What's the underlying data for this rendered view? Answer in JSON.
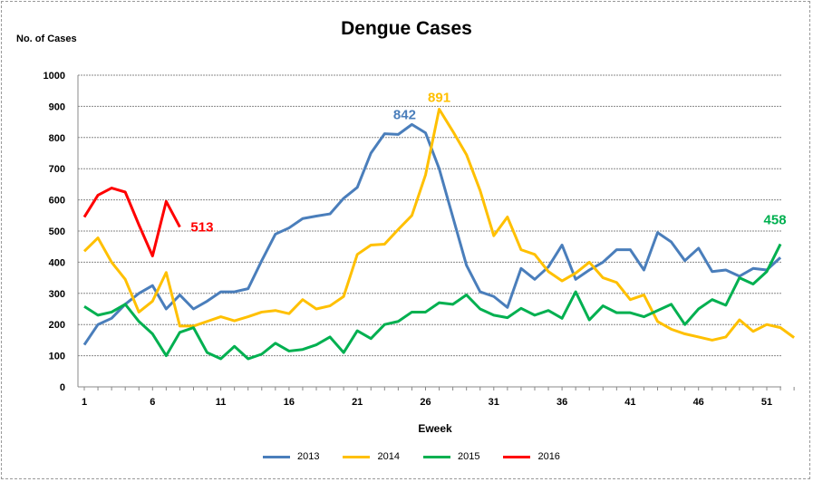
{
  "chart_data": {
    "type": "line",
    "title": "Dengue Cases",
    "ylabel": "No. of Cases",
    "xlabel": "Eweek",
    "ylim": [
      0,
      1000
    ],
    "yticks": [
      0,
      100,
      200,
      300,
      400,
      500,
      600,
      700,
      800,
      900,
      1000
    ],
    "xlim": [
      1,
      53
    ],
    "xticks": [
      1,
      6,
      11,
      16,
      21,
      26,
      31,
      36,
      41,
      46,
      51
    ],
    "grid": true,
    "legend": "bottom",
    "series": [
      {
        "name": "2013",
        "color": "#4A7EBB",
        "label": "842",
        "label_week": 25,
        "values": [
          135,
          200,
          220,
          265,
          300,
          325,
          250,
          295,
          250,
          275,
          305,
          305,
          315,
          405,
          490,
          510,
          540,
          548,
          555,
          605,
          640,
          750,
          812,
          810,
          842,
          815,
          700,
          545,
          390,
          305,
          290,
          255,
          380,
          345,
          385,
          455,
          345,
          375,
          400,
          440,
          440,
          375,
          495,
          465,
          405,
          445,
          370,
          375,
          355,
          380,
          375,
          415
        ]
      },
      {
        "name": "2014",
        "color": "#FFC000",
        "label": "891",
        "label_week": 27,
        "values": [
          435,
          478,
          400,
          345,
          240,
          275,
          367,
          195,
          195,
          210,
          225,
          212,
          225,
          240,
          245,
          235,
          280,
          250,
          260,
          290,
          425,
          455,
          458,
          505,
          550,
          680,
          891,
          820,
          745,
          630,
          485,
          545,
          440,
          425,
          370,
          340,
          365,
          400,
          350,
          335,
          280,
          295,
          210,
          185,
          170,
          160,
          150,
          160,
          215,
          178,
          200,
          190,
          158
        ]
      },
      {
        "name": "2015",
        "color": "#00B050",
        "label": "458",
        "label_week": 52,
        "values": [
          258,
          230,
          240,
          265,
          210,
          170,
          100,
          175,
          190,
          110,
          90,
          130,
          90,
          105,
          140,
          115,
          120,
          135,
          160,
          110,
          180,
          155,
          200,
          210,
          240,
          240,
          270,
          265,
          295,
          250,
          230,
          222,
          252,
          230,
          245,
          220,
          305,
          215,
          260,
          238,
          238,
          225,
          245,
          265,
          200,
          250,
          280,
          262,
          350,
          330,
          370,
          458
        ]
      },
      {
        "name": "2016",
        "color": "#FF0000",
        "label": "513",
        "label_week": 8,
        "values": [
          545,
          615,
          638,
          625,
          520,
          420,
          595,
          513
        ]
      }
    ]
  }
}
